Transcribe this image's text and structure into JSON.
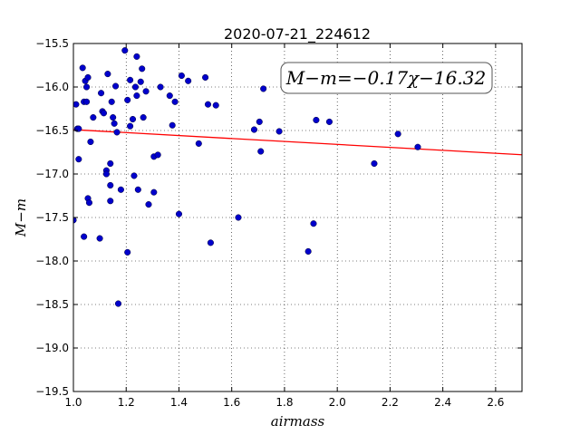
{
  "chart_data": {
    "type": "scatter",
    "title": "2020-07-21_224612",
    "xlabel": "airmass",
    "ylabel": "M−m",
    "xlim": [
      1.0,
      2.7
    ],
    "ylim": [
      -19.5,
      -15.5
    ],
    "y_inverted": true,
    "grid": true,
    "x_ticks": [
      1.0,
      1.2,
      1.4,
      1.6,
      1.8,
      2.0,
      2.2,
      2.4,
      2.6
    ],
    "x_tick_labels": [
      "1.0",
      "1.2",
      "1.4",
      "1.6",
      "1.8",
      "2.0",
      "2.2",
      "2.4",
      "2.6"
    ],
    "y_ticks": [
      -15.5,
      -16.0,
      -16.5,
      -17.0,
      -17.5,
      -18.0,
      -18.5,
      -19.0,
      -19.5
    ],
    "y_tick_labels": [
      "−15.5",
      "−16.0",
      "−16.5",
      "−17.0",
      "−17.5",
      "−18.0",
      "−18.5",
      "−19.0",
      "−19.5"
    ],
    "annotation": "M−m=−0.17χ−16.32",
    "fit": {
      "slope": -0.17,
      "intercept": -16.32,
      "color": "#ff0000"
    },
    "point_color": "#0000cc",
    "points": [
      [
        1.0,
        -17.53
      ],
      [
        1.01,
        -16.2
      ],
      [
        1.015,
        -16.48
      ],
      [
        1.02,
        -16.48
      ],
      [
        1.02,
        -16.83
      ],
      [
        1.035,
        -15.78
      ],
      [
        1.04,
        -16.17
      ],
      [
        1.04,
        -17.72
      ],
      [
        1.045,
        -15.93
      ],
      [
        1.05,
        -16.0
      ],
      [
        1.05,
        -16.17
      ],
      [
        1.055,
        -15.89
      ],
      [
        1.055,
        -17.28
      ],
      [
        1.06,
        -17.33
      ],
      [
        1.065,
        -16.63
      ],
      [
        1.075,
        -16.35
      ],
      [
        1.1,
        -17.74
      ],
      [
        1.105,
        -16.07
      ],
      [
        1.11,
        -16.28
      ],
      [
        1.115,
        -16.3
      ],
      [
        1.125,
        -16.96
      ],
      [
        1.125,
        -17.0
      ],
      [
        1.13,
        -15.85
      ],
      [
        1.14,
        -16.88
      ],
      [
        1.14,
        -17.13
      ],
      [
        1.14,
        -17.31
      ],
      [
        1.145,
        -16.17
      ],
      [
        1.15,
        -16.35
      ],
      [
        1.155,
        -16.42
      ],
      [
        1.16,
        -15.99
      ],
      [
        1.165,
        -16.52
      ],
      [
        1.17,
        -18.49
      ],
      [
        1.18,
        -17.18
      ],
      [
        1.195,
        -15.58
      ],
      [
        1.205,
        -16.15
      ],
      [
        1.205,
        -17.9
      ],
      [
        1.215,
        -15.92
      ],
      [
        1.215,
        -16.45
      ],
      [
        1.225,
        -16.37
      ],
      [
        1.23,
        -17.02
      ],
      [
        1.235,
        -16.0
      ],
      [
        1.24,
        -16.1
      ],
      [
        1.24,
        -15.65
      ],
      [
        1.245,
        -17.18
      ],
      [
        1.255,
        -15.94
      ],
      [
        1.26,
        -15.79
      ],
      [
        1.265,
        -16.35
      ],
      [
        1.275,
        -16.05
      ],
      [
        1.285,
        -17.35
      ],
      [
        1.305,
        -16.8
      ],
      [
        1.305,
        -17.21
      ],
      [
        1.32,
        -16.78
      ],
      [
        1.33,
        -16.0
      ],
      [
        1.365,
        -16.1
      ],
      [
        1.375,
        -16.44
      ],
      [
        1.385,
        -16.17
      ],
      [
        1.4,
        -17.46
      ],
      [
        1.41,
        -15.87
      ],
      [
        1.435,
        -15.93
      ],
      [
        1.475,
        -16.65
      ],
      [
        1.5,
        -15.89
      ],
      [
        1.51,
        -16.2
      ],
      [
        1.52,
        -17.79
      ],
      [
        1.54,
        -16.21
      ],
      [
        1.625,
        -17.5
      ],
      [
        1.685,
        -16.49
      ],
      [
        1.705,
        -16.4
      ],
      [
        1.71,
        -16.74
      ],
      [
        1.72,
        -16.02
      ],
      [
        1.78,
        -16.51
      ],
      [
        1.89,
        -17.89
      ],
      [
        1.91,
        -17.57
      ],
      [
        1.92,
        -16.38
      ],
      [
        1.97,
        -16.4
      ],
      [
        2.14,
        -16.88
      ],
      [
        2.23,
        -16.54
      ],
      [
        2.305,
        -16.69
      ]
    ]
  }
}
